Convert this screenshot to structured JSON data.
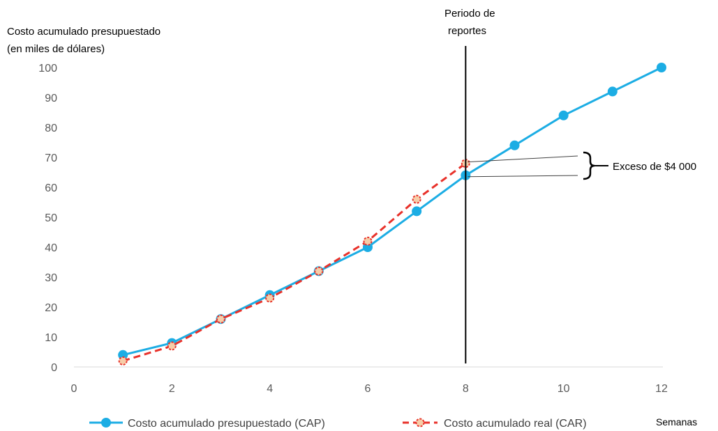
{
  "chart_data": {
    "type": "line",
    "ylabel_line1": "Costo acumulado presupuestado",
    "ylabel_line2": "(en miles de dólares)",
    "xlabel": "Semanas",
    "xlim": [
      0,
      12
    ],
    "ylim": [
      0,
      100
    ],
    "x_ticks": [
      "0",
      "2",
      "4",
      "6",
      "8",
      "10",
      "12"
    ],
    "y_ticks": [
      "0",
      "10",
      "20",
      "30",
      "40",
      "50",
      "60",
      "70",
      "80",
      "90",
      "100"
    ],
    "grid": false,
    "legend_position": "bottom",
    "series": [
      {
        "name": "Costo acumulado presupuestado (CAP)",
        "color": "#1CADE4",
        "style": "solid",
        "x": [
          1,
          2,
          3,
          4,
          5,
          6,
          7,
          8,
          9,
          10,
          11,
          12
        ],
        "values": [
          4,
          8,
          16,
          24,
          32,
          40,
          52,
          64,
          74,
          84,
          92,
          100
        ]
      },
      {
        "name": "Costo acumulado real (CAR)",
        "color": "#E8312A",
        "marker_fill": "#F6CDA8",
        "style": "dashed",
        "x": [
          1,
          2,
          3,
          4,
          5,
          6,
          7,
          8
        ],
        "values": [
          2,
          7,
          16,
          23,
          32,
          42,
          56,
          68
        ]
      }
    ],
    "annotations": {
      "reporting_line": {
        "x": 8,
        "label_line1": "Periodo de",
        "label_line2": "reportes"
      },
      "excess": {
        "label": "Exceso de $4 000",
        "from": 64,
        "to": 68
      }
    }
  }
}
